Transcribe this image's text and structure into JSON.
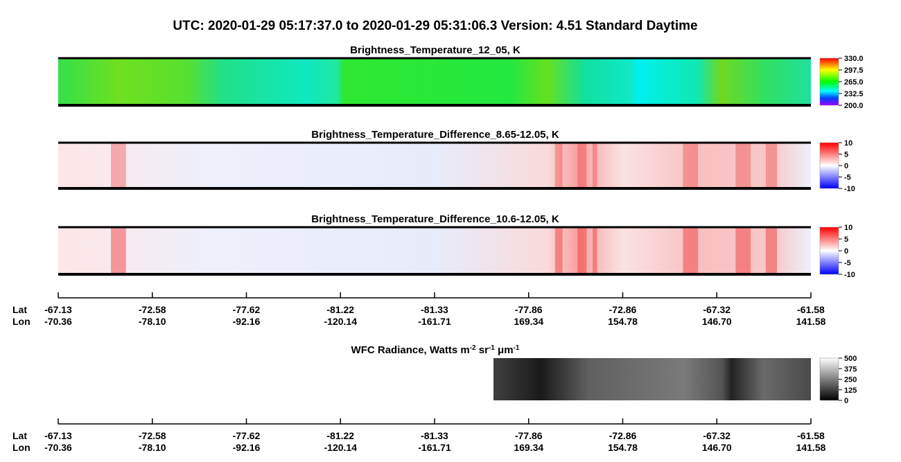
{
  "header": {
    "title": "UTC:  2020-01-29   05:17:37.0  to  2020-01-29   05:31:06.3    Version: 4.51  Standard Daytime"
  },
  "panels": [
    {
      "title": [
        "Brightness_Temperature_12_05, K"
      ],
      "colorbar": [
        "330.0",
        "297.5",
        "265.0",
        "232.5",
        "200.0"
      ]
    },
    {
      "title": [
        "Brightness_Temperature_Difference_8.65-12.05, K"
      ],
      "colorbar": [
        "10",
        "5",
        "0",
        "-5",
        "-10"
      ]
    },
    {
      "title": [
        "Brightness_Temperature_Difference_10.6-12.05, K"
      ],
      "colorbar": [
        "10",
        "5",
        "0",
        "-5",
        "-10"
      ]
    },
    {
      "title": [
        "WFC Radiance, Watts m",
        "-2",
        " sr",
        "-1",
        " μm",
        "-1"
      ],
      "colorbar": [
        "500",
        "375",
        "250",
        "125",
        "0"
      ]
    }
  ],
  "axes": [
    {
      "lat_label": "Lat",
      "lon_label": "Lon",
      "lat": [
        "-67.13",
        "-72.58",
        "-77.62",
        "-81.22",
        "-81.33",
        "-77.86",
        "-72.86",
        "-67.32",
        "-61.58"
      ],
      "lon": [
        "-70.36",
        "-78.10",
        "-92.16",
        "-120.14",
        "-161.71",
        "169.34",
        "154.78",
        "146.70",
        "141.58"
      ]
    },
    {
      "lat_label": "Lat",
      "lon_label": "Lon",
      "lat": [
        "-67.13",
        "-72.58",
        "-77.62",
        "-81.22",
        "-81.33",
        "-77.86",
        "-72.86",
        "-67.32",
        "-61.58"
      ],
      "lon": [
        "-70.36",
        "-78.10",
        "-92.16",
        "-120.14",
        "-161.71",
        "169.34",
        "154.78",
        "146.70",
        "141.58"
      ]
    }
  ]
}
